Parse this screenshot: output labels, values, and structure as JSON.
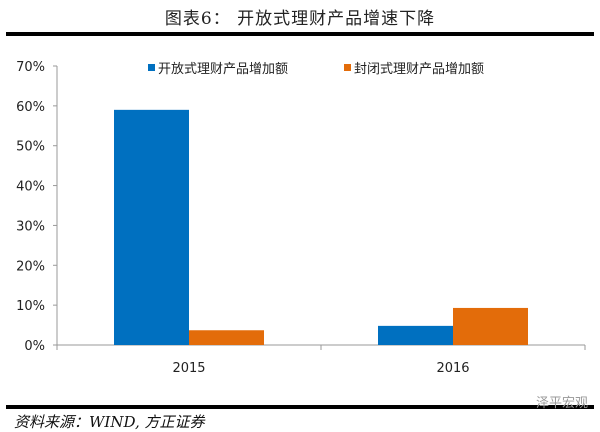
{
  "title": "图表6： 开放式理财产品增速下降",
  "source": "资料来源：WIND, 方正证券",
  "watermark": "泽平宏观",
  "chart_data": {
    "type": "bar",
    "categories": [
      "2015",
      "2016"
    ],
    "series": [
      {
        "name": "开放式理财产品增加额",
        "values": [
          59,
          4.8
        ],
        "color": "#0070C0"
      },
      {
        "name": "封闭式理财产品增加额",
        "values": [
          3.7,
          9.3
        ],
        "color": "#E36C0A"
      }
    ],
    "ylim": [
      0,
      70
    ],
    "yticks": [
      "0%",
      "10%",
      "20%",
      "30%",
      "40%",
      "50%",
      "60%",
      "70%"
    ],
    "legend": "top",
    "grid": false
  }
}
